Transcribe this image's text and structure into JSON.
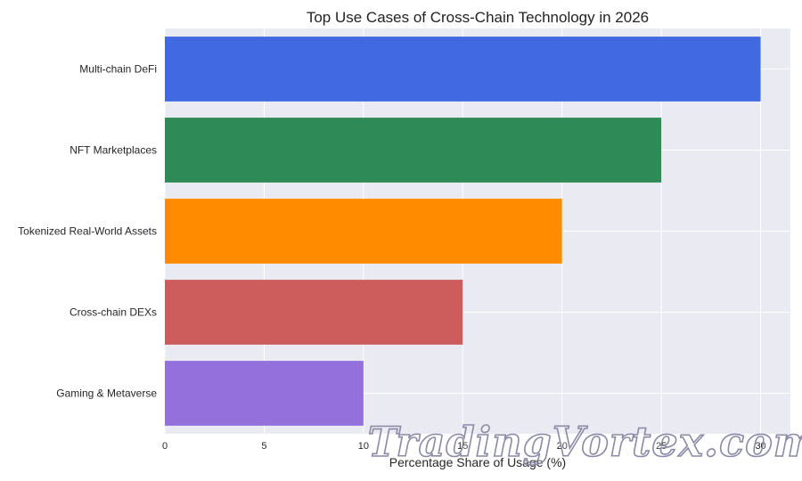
{
  "chart_data": {
    "type": "bar",
    "orientation": "horizontal",
    "title": "Top Use Cases of Cross-Chain Technology in 2026",
    "xlabel": "Percentage Share of Usage (%)",
    "ylabel": "",
    "categories": [
      "Multi-chain DeFi",
      "NFT Marketplaces",
      "Tokenized Real-World Assets",
      "Cross-chain DEXs",
      "Gaming & Metaverse"
    ],
    "values": [
      30,
      25,
      20,
      15,
      10
    ],
    "colors": [
      "#4169E1",
      "#2E8B57",
      "#FF8C00",
      "#CD5C5C",
      "#9370DB"
    ],
    "xlim": [
      0,
      31.5
    ],
    "xticks": [
      0,
      5,
      10,
      15,
      20,
      25,
      30
    ],
    "grid": true,
    "background": "#EAEAF2"
  },
  "watermark": {
    "text": "TradingVortex.com"
  }
}
